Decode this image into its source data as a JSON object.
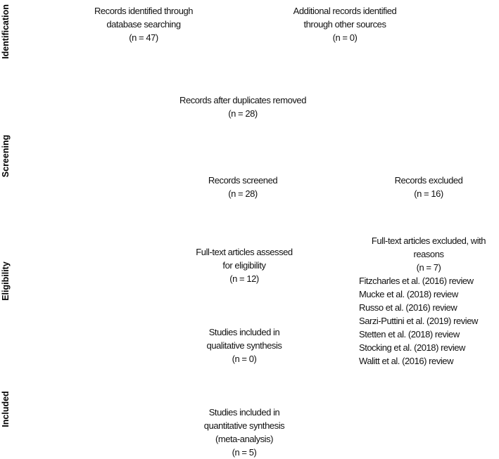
{
  "stages": [
    "Identification",
    "Screening",
    "Eligibility",
    "Included"
  ],
  "boxes": {
    "db_search": [
      "Records identified through",
      "database searching",
      "(n = 47)"
    ],
    "other_sources": [
      "Additional records identified",
      "through other sources",
      "(n = 0)"
    ],
    "after_duplicates": [
      "Records after duplicates removed",
      "(n = 28)"
    ],
    "screened": [
      "Records screened",
      "(n = 28)"
    ],
    "excluded": [
      "Records excluded",
      "(n = 16)"
    ],
    "fulltext_assessed": [
      "Full-text articles assessed",
      "for eligibility",
      "(n = 12)"
    ],
    "fulltext_excluded": [
      "Full-text articles excluded, with",
      "reasons",
      "(n = 7)"
    ],
    "qualitative": [
      "Studies included in",
      "qualitative synthesis",
      "(n = 0)"
    ],
    "quantitative": [
      "Studies included in",
      "quantitative synthesis",
      "(meta-analysis)",
      "(n = 5)"
    ]
  },
  "exclusion_reasons": [
    "Fitzcharles et al. (2016) review",
    "Mucke et al. (2018) review",
    "Russo et al. (2016) review",
    "Sarzi-Puttini et al. (2019) review",
    "Stetten et al. (2018) review",
    "Stocking et al. (2018) review",
    "Walitt et al. (2016) review"
  ]
}
